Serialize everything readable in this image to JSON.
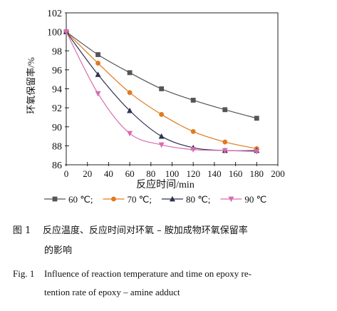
{
  "chart_data": {
    "type": "line",
    "xlabel": "反应时间/min",
    "ylabel": "环氧保留率/%",
    "xlim": [
      0,
      200
    ],
    "ylim": [
      86,
      102
    ],
    "xticks": [
      0,
      20,
      40,
      60,
      80,
      100,
      120,
      140,
      160,
      180,
      200
    ],
    "yticks": [
      86,
      88,
      90,
      92,
      94,
      96,
      98,
      100,
      102
    ],
    "grid": false,
    "legend_position": "bottom",
    "series": [
      {
        "name": "60 ℃;",
        "color": "#555555",
        "marker": "square",
        "x": [
          0,
          30,
          60,
          90,
          120,
          150,
          180
        ],
        "y": [
          100,
          97.6,
          95.7,
          94.0,
          92.8,
          91.8,
          90.9
        ]
      },
      {
        "name": "70 ℃;",
        "color": "#e07a20",
        "marker": "circle",
        "x": [
          0,
          30,
          60,
          90,
          120,
          150,
          180
        ],
        "y": [
          100,
          96.7,
          93.6,
          91.3,
          89.5,
          88.4,
          87.7
        ]
      },
      {
        "name": "80 ℃;",
        "color": "#2e3050",
        "marker": "triangle",
        "x": [
          0,
          30,
          60,
          90,
          120,
          150,
          180
        ],
        "y": [
          100,
          95.5,
          91.7,
          89.0,
          87.8,
          87.5,
          87.5
        ]
      },
      {
        "name": "90 ℃",
        "color": "#d86cb0",
        "marker": "triangle-down",
        "x": [
          0,
          30,
          60,
          90,
          120,
          150,
          180
        ],
        "y": [
          100,
          93.5,
          89.3,
          88.1,
          87.6,
          87.5,
          87.4
        ]
      }
    ]
  },
  "caption": {
    "zh_number": "图 1",
    "zh_line1": "反应温度、反应时间对环氧 – 胺加成物环氧保留率",
    "zh_line2": "的影响",
    "en_number": "Fig. 1",
    "en_line1": "Influence of reaction temperature and time on epoxy re-",
    "en_line2": "tention rate of epoxy – amine adduct"
  }
}
